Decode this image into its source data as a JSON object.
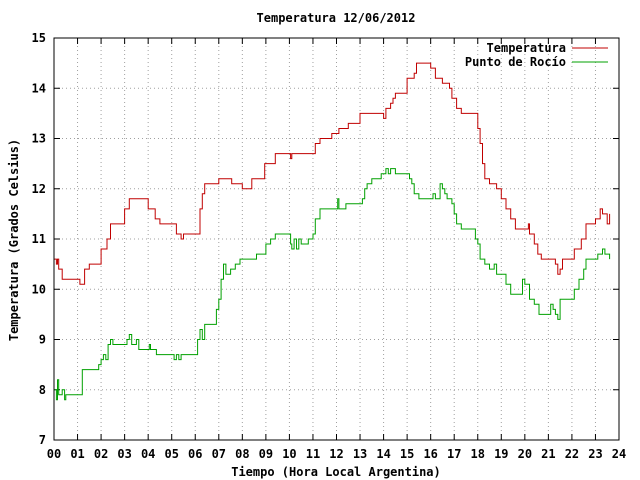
{
  "chart_data": {
    "type": "line",
    "title": "Temperatura 12/06/2012",
    "xlabel": "Tiempo (Hora Local Argentina)",
    "ylabel": "Temperatura (Grados Celsius)",
    "xlim": [
      0,
      24
    ],
    "ylim": [
      7,
      15
    ],
    "x_ticks": [
      "00",
      "01",
      "02",
      "03",
      "04",
      "05",
      "06",
      "07",
      "08",
      "09",
      "10",
      "11",
      "12",
      "13",
      "14",
      "15",
      "16",
      "17",
      "18",
      "19",
      "20",
      "21",
      "22",
      "23",
      "24"
    ],
    "y_ticks": [
      "7",
      "8",
      "9",
      "10",
      "11",
      "12",
      "13",
      "14",
      "15"
    ],
    "grid": true,
    "legend_position": "top-right",
    "series": [
      {
        "name": "Temperatura",
        "color": "#c00000",
        "points": [
          [
            0.0,
            10.6
          ],
          [
            0.1,
            10.5
          ],
          [
            0.15,
            10.6
          ],
          [
            0.2,
            10.4
          ],
          [
            0.35,
            10.2
          ],
          [
            1.0,
            10.2
          ],
          [
            1.1,
            10.1
          ],
          [
            1.3,
            10.4
          ],
          [
            1.5,
            10.5
          ],
          [
            1.9,
            10.5
          ],
          [
            2.0,
            10.8
          ],
          [
            2.25,
            11.0
          ],
          [
            2.4,
            11.3
          ],
          [
            2.9,
            11.3
          ],
          [
            3.0,
            11.6
          ],
          [
            3.2,
            11.8
          ],
          [
            3.9,
            11.8
          ],
          [
            4.0,
            11.6
          ],
          [
            4.3,
            11.4
          ],
          [
            4.5,
            11.3
          ],
          [
            5.0,
            11.3
          ],
          [
            5.2,
            11.1
          ],
          [
            5.4,
            11.0
          ],
          [
            5.5,
            11.1
          ],
          [
            6.0,
            11.1
          ],
          [
            6.2,
            11.6
          ],
          [
            6.3,
            11.9
          ],
          [
            6.4,
            12.1
          ],
          [
            6.9,
            12.1
          ],
          [
            7.0,
            12.2
          ],
          [
            7.5,
            12.2
          ],
          [
            7.55,
            12.1
          ],
          [
            7.9,
            12.1
          ],
          [
            8.0,
            12.0
          ],
          [
            8.3,
            12.0
          ],
          [
            8.4,
            12.2
          ],
          [
            8.8,
            12.2
          ],
          [
            8.95,
            12.5
          ],
          [
            9.3,
            12.5
          ],
          [
            9.4,
            12.7
          ],
          [
            10.0,
            12.7
          ],
          [
            10.05,
            12.6
          ],
          [
            10.1,
            12.7
          ],
          [
            11.0,
            12.7
          ],
          [
            11.1,
            12.9
          ],
          [
            11.3,
            13.0
          ],
          [
            11.6,
            13.0
          ],
          [
            11.8,
            13.1
          ],
          [
            12.0,
            13.1
          ],
          [
            12.1,
            13.2
          ],
          [
            12.4,
            13.2
          ],
          [
            12.5,
            13.3
          ],
          [
            12.9,
            13.3
          ],
          [
            13.0,
            13.5
          ],
          [
            13.9,
            13.5
          ],
          [
            14.0,
            13.4
          ],
          [
            14.1,
            13.6
          ],
          [
            14.3,
            13.7
          ],
          [
            14.4,
            13.8
          ],
          [
            14.5,
            13.9
          ],
          [
            14.9,
            13.9
          ],
          [
            15.0,
            14.2
          ],
          [
            15.3,
            14.3
          ],
          [
            15.4,
            14.5
          ],
          [
            15.8,
            14.5
          ],
          [
            16.0,
            14.4
          ],
          [
            16.2,
            14.2
          ],
          [
            16.5,
            14.1
          ],
          [
            16.8,
            14.0
          ],
          [
            16.9,
            13.8
          ],
          [
            17.1,
            13.6
          ],
          [
            17.3,
            13.5
          ],
          [
            17.8,
            13.5
          ],
          [
            18.0,
            13.2
          ],
          [
            18.1,
            12.9
          ],
          [
            18.2,
            12.5
          ],
          [
            18.3,
            12.2
          ],
          [
            18.5,
            12.1
          ],
          [
            18.8,
            12.0
          ],
          [
            18.9,
            12.0
          ],
          [
            19.0,
            11.8
          ],
          [
            19.2,
            11.6
          ],
          [
            19.4,
            11.4
          ],
          [
            19.6,
            11.2
          ],
          [
            20.0,
            11.2
          ],
          [
            20.15,
            11.3
          ],
          [
            20.2,
            11.1
          ],
          [
            20.4,
            10.9
          ],
          [
            20.55,
            10.7
          ],
          [
            20.7,
            10.6
          ],
          [
            21.0,
            10.6
          ],
          [
            21.3,
            10.5
          ],
          [
            21.4,
            10.3
          ],
          [
            21.5,
            10.4
          ],
          [
            21.6,
            10.6
          ],
          [
            22.0,
            10.6
          ],
          [
            22.1,
            10.8
          ],
          [
            22.3,
            10.8
          ],
          [
            22.4,
            11.0
          ],
          [
            22.6,
            11.3
          ],
          [
            22.9,
            11.3
          ],
          [
            23.0,
            11.4
          ],
          [
            23.2,
            11.6
          ],
          [
            23.3,
            11.5
          ],
          [
            23.4,
            11.5
          ],
          [
            23.5,
            11.3
          ],
          [
            23.6,
            11.5
          ]
        ]
      },
      {
        "name": "Punto de Rocío",
        "color": "#00a000",
        "points": [
          [
            0.0,
            8.0
          ],
          [
            0.1,
            7.8
          ],
          [
            0.15,
            8.2
          ],
          [
            0.2,
            7.9
          ],
          [
            0.3,
            7.9
          ],
          [
            0.35,
            8.0
          ],
          [
            0.45,
            7.8
          ],
          [
            0.5,
            7.9
          ],
          [
            1.0,
            7.9
          ],
          [
            1.2,
            8.4
          ],
          [
            1.8,
            8.4
          ],
          [
            1.9,
            8.5
          ],
          [
            2.0,
            8.6
          ],
          [
            2.1,
            8.7
          ],
          [
            2.2,
            8.6
          ],
          [
            2.3,
            8.9
          ],
          [
            2.4,
            9.0
          ],
          [
            2.5,
            8.9
          ],
          [
            3.0,
            8.9
          ],
          [
            3.1,
            9.0
          ],
          [
            3.2,
            9.1
          ],
          [
            3.3,
            8.9
          ],
          [
            3.5,
            9.0
          ],
          [
            3.6,
            8.8
          ],
          [
            4.0,
            8.8
          ],
          [
            4.05,
            8.9
          ],
          [
            4.1,
            8.8
          ],
          [
            4.3,
            8.8
          ],
          [
            4.35,
            8.7
          ],
          [
            5.0,
            8.7
          ],
          [
            5.1,
            8.6
          ],
          [
            5.2,
            8.7
          ],
          [
            5.3,
            8.6
          ],
          [
            5.4,
            8.7
          ],
          [
            6.0,
            8.7
          ],
          [
            6.1,
            9.0
          ],
          [
            6.2,
            9.2
          ],
          [
            6.3,
            9.0
          ],
          [
            6.4,
            9.3
          ],
          [
            6.7,
            9.3
          ],
          [
            6.9,
            9.6
          ],
          [
            7.0,
            9.8
          ],
          [
            7.1,
            10.2
          ],
          [
            7.2,
            10.5
          ],
          [
            7.3,
            10.3
          ],
          [
            7.5,
            10.4
          ],
          [
            7.7,
            10.5
          ],
          [
            7.9,
            10.6
          ],
          [
            8.5,
            10.6
          ],
          [
            8.6,
            10.7
          ],
          [
            8.9,
            10.7
          ],
          [
            9.0,
            10.9
          ],
          [
            9.2,
            11.0
          ],
          [
            9.4,
            11.1
          ],
          [
            10.0,
            11.1
          ],
          [
            10.05,
            10.9
          ],
          [
            10.1,
            10.8
          ],
          [
            10.2,
            11.0
          ],
          [
            10.3,
            10.8
          ],
          [
            10.4,
            11.0
          ],
          [
            10.5,
            10.9
          ],
          [
            10.8,
            11.0
          ],
          [
            11.0,
            11.1
          ],
          [
            11.1,
            11.4
          ],
          [
            11.3,
            11.6
          ],
          [
            12.0,
            11.6
          ],
          [
            12.05,
            11.8
          ],
          [
            12.1,
            11.6
          ],
          [
            12.4,
            11.7
          ],
          [
            13.0,
            11.7
          ],
          [
            13.1,
            11.8
          ],
          [
            13.2,
            12.0
          ],
          [
            13.3,
            12.1
          ],
          [
            13.5,
            12.2
          ],
          [
            13.8,
            12.2
          ],
          [
            13.9,
            12.3
          ],
          [
            14.1,
            12.4
          ],
          [
            14.2,
            12.3
          ],
          [
            14.3,
            12.4
          ],
          [
            14.5,
            12.3
          ],
          [
            15.0,
            12.3
          ],
          [
            15.1,
            12.2
          ],
          [
            15.2,
            12.1
          ],
          [
            15.3,
            11.9
          ],
          [
            15.5,
            11.8
          ],
          [
            16.0,
            11.8
          ],
          [
            16.1,
            11.9
          ],
          [
            16.2,
            11.8
          ],
          [
            16.4,
            12.1
          ],
          [
            16.5,
            12.0
          ],
          [
            16.6,
            11.9
          ],
          [
            16.7,
            11.8
          ],
          [
            16.9,
            11.7
          ],
          [
            17.0,
            11.5
          ],
          [
            17.1,
            11.3
          ],
          [
            17.3,
            11.2
          ],
          [
            17.8,
            11.2
          ],
          [
            17.9,
            11.0
          ],
          [
            18.0,
            10.9
          ],
          [
            18.1,
            10.6
          ],
          [
            18.2,
            10.6
          ],
          [
            18.3,
            10.5
          ],
          [
            18.5,
            10.4
          ],
          [
            18.7,
            10.5
          ],
          [
            18.8,
            10.3
          ],
          [
            19.0,
            10.3
          ],
          [
            19.2,
            10.1
          ],
          [
            19.4,
            9.9
          ],
          [
            19.8,
            9.9
          ],
          [
            19.9,
            10.2
          ],
          [
            20.0,
            10.1
          ],
          [
            20.2,
            9.8
          ],
          [
            20.4,
            9.7
          ],
          [
            20.6,
            9.5
          ],
          [
            21.0,
            9.5
          ],
          [
            21.1,
            9.7
          ],
          [
            21.2,
            9.6
          ],
          [
            21.3,
            9.5
          ],
          [
            21.4,
            9.4
          ],
          [
            21.5,
            9.8
          ],
          [
            22.0,
            9.8
          ],
          [
            22.1,
            10.0
          ],
          [
            22.3,
            10.2
          ],
          [
            22.5,
            10.4
          ],
          [
            22.6,
            10.6
          ],
          [
            23.0,
            10.6
          ],
          [
            23.1,
            10.7
          ],
          [
            23.3,
            10.8
          ],
          [
            23.4,
            10.7
          ],
          [
            23.5,
            10.7
          ],
          [
            23.6,
            10.6
          ]
        ]
      }
    ]
  }
}
